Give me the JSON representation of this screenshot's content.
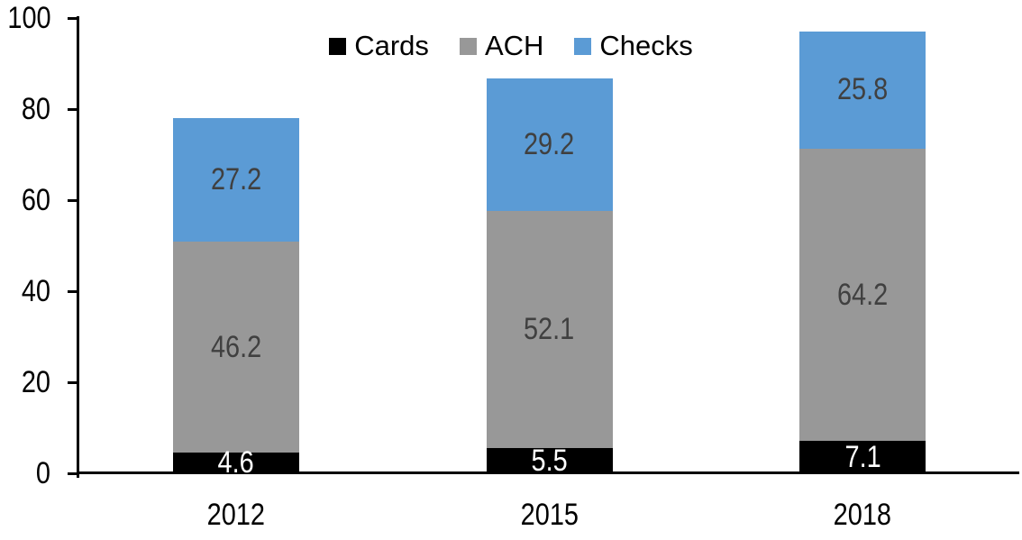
{
  "chart_data": {
    "type": "bar",
    "stacked": true,
    "title": "",
    "xlabel": "",
    "ylabel": "",
    "categories": [
      "2012",
      "2015",
      "2018"
    ],
    "series": [
      {
        "name": "Cards",
        "values": [
          4.6,
          5.5,
          7.1
        ],
        "color": "#000000",
        "label_color": "#FFFFFF"
      },
      {
        "name": "ACH",
        "values": [
          46.2,
          52.1,
          64.2
        ],
        "color": "#989898",
        "label_color": "#404040"
      },
      {
        "name": "Checks",
        "values": [
          27.2,
          29.2,
          25.8
        ],
        "color": "#5B9BD5",
        "label_color": "#404040"
      }
    ],
    "ylim": [
      0,
      100
    ],
    "yticks": [
      0,
      20,
      40,
      60,
      80,
      100
    ],
    "grid": false,
    "legend_position": "top-center",
    "legend_entries": [
      "Cards",
      "ACH",
      "Checks"
    ],
    "axis_color": "#000000",
    "background_color": "#FFFFFF",
    "data_labels_shown": true
  }
}
